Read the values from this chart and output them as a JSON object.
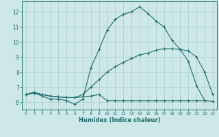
{
  "xlabel": "Humidex (Indice chaleur)",
  "bg_color": "#cce8e8",
  "grid_color": "#a8cccc",
  "line_color": "#1a6b6b",
  "xlim": [
    -0.5,
    23.5
  ],
  "ylim": [
    5.5,
    12.7
  ],
  "xticks": [
    0,
    1,
    2,
    3,
    4,
    5,
    6,
    7,
    8,
    9,
    10,
    11,
    12,
    13,
    14,
    15,
    16,
    17,
    18,
    19,
    20,
    21,
    22,
    23
  ],
  "yticks": [
    6,
    7,
    8,
    9,
    10,
    11,
    12
  ],
  "line1_x": [
    0,
    1,
    2,
    3,
    4,
    5,
    6,
    7,
    8,
    9,
    10,
    11,
    12,
    13,
    14,
    15,
    16,
    17,
    18,
    19,
    20,
    21,
    22,
    23
  ],
  "line1_y": [
    6.5,
    6.6,
    6.4,
    6.2,
    6.2,
    6.1,
    5.85,
    6.2,
    8.3,
    9.5,
    10.8,
    11.5,
    11.85,
    12.0,
    12.35,
    11.9,
    11.4,
    11.0,
    10.1,
    9.5,
    8.7,
    7.1,
    6.1,
    6.05
  ],
  "line2_x": [
    0,
    1,
    2,
    3,
    4,
    5,
    6,
    7,
    8,
    9,
    10,
    11,
    12,
    13,
    14,
    15,
    16,
    17,
    18,
    19,
    20,
    21,
    22,
    23
  ],
  "line2_y": [
    6.5,
    6.65,
    6.5,
    6.4,
    6.35,
    6.3,
    6.3,
    6.5,
    7.0,
    7.5,
    8.0,
    8.35,
    8.65,
    8.9,
    9.15,
    9.25,
    9.45,
    9.55,
    9.55,
    9.5,
    9.4,
    9.0,
    8.0,
    6.5
  ],
  "line3_x": [
    0,
    1,
    2,
    3,
    4,
    5,
    6,
    7,
    8,
    9,
    10,
    11,
    12,
    13,
    14,
    15,
    16,
    17,
    18,
    19,
    20,
    21,
    22,
    23
  ],
  "line3_y": [
    6.5,
    6.65,
    6.5,
    6.4,
    6.35,
    6.3,
    6.3,
    6.35,
    6.4,
    6.5,
    6.1,
    6.1,
    6.1,
    6.1,
    6.1,
    6.1,
    6.1,
    6.1,
    6.1,
    6.1,
    6.1,
    6.1,
    6.1,
    6.05
  ]
}
